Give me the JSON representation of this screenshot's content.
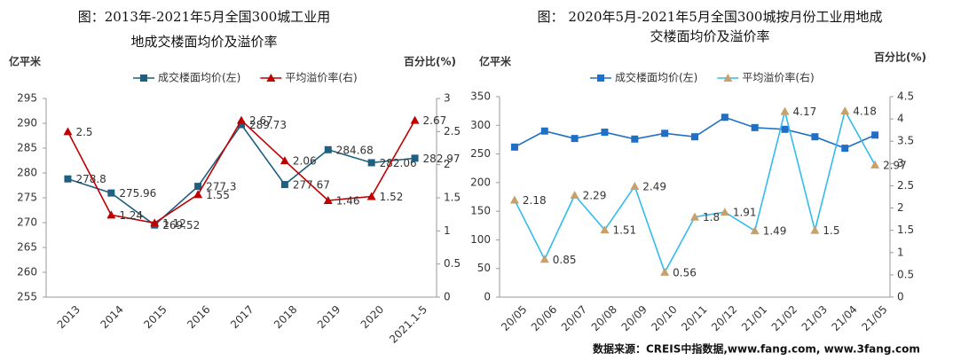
{
  "chart_data": [
    {
      "type": "line",
      "title": [
        "图：2013年-2021年5月全国300城工业用",
        "地成交楼面均价及溢价率"
      ],
      "y_label": "亿平米",
      "y2_label": "百分比(%)",
      "categories": [
        "2013",
        "2014",
        "2015",
        "2016",
        "2017",
        "2018",
        "2019",
        "2020",
        "2021.1-5"
      ],
      "ylim": [
        255,
        295
      ],
      "yticks": [
        255,
        260,
        265,
        270,
        275,
        280,
        285,
        290,
        295
      ],
      "y2lim": [
        0,
        3
      ],
      "y2ticks": [
        0,
        0.5,
        1,
        1.5,
        2,
        2.5,
        3
      ],
      "grid": false,
      "series": [
        {
          "name": "成交楼面均价(左)",
          "color": "#1f5f7f",
          "marker": "square",
          "marker_color": "#1f5f7f",
          "data_labels": true,
          "values": [
            278.8,
            275.96,
            269.52,
            277.3,
            289.73,
            277.67,
            284.68,
            282.06,
            282.97
          ]
        },
        {
          "name": "平均溢价率(右)",
          "color": "#c00000",
          "marker": "triangle",
          "marker_color": "#c00000",
          "data_labels": true,
          "axis": "y2",
          "values": [
            2.5,
            1.24,
            1.12,
            1.55,
            2.67,
            2.06,
            1.46,
            1.52,
            2.67
          ]
        }
      ]
    },
    {
      "type": "line",
      "title": [
        "图：   2020年5月-2021年5月全国300城按月份工业用地成",
        "交楼面均价及溢价率"
      ],
      "y_label": "亿平米",
      "y2_label": "百分比(%)",
      "categories": [
        "20/05",
        "20/06",
        "20/07",
        "20/08",
        "20/09",
        "20/10",
        "20/11",
        "20/12",
        "21/01",
        "21/02",
        "21/03",
        "21/04",
        "21/05"
      ],
      "ylim": [
        0,
        350
      ],
      "yticks": [
        0,
        50,
        100,
        150,
        200,
        250,
        300,
        350
      ],
      "y2lim": [
        0,
        4.5
      ],
      "y2ticks": [
        0,
        0.5,
        1,
        1.5,
        2,
        2.5,
        3,
        3.5,
        4,
        4.5
      ],
      "grid": false,
      "series": [
        {
          "name": "成交楼面均价(左)",
          "color": "#1f6fc5",
          "marker": "square",
          "marker_color": "#1f6fc5",
          "data_labels": false,
          "values": [
            262,
            290,
            277,
            288,
            276,
            286,
            280,
            314,
            296,
            293,
            280,
            260,
            283
          ]
        },
        {
          "name": "平均溢价率(右)",
          "color": "#33bbee",
          "marker": "triangle",
          "marker_color": "#c8a06a",
          "data_labels": true,
          "axis": "y2",
          "values": [
            2.18,
            0.85,
            2.29,
            1.51,
            2.49,
            0.56,
            1.8,
            1.91,
            1.49,
            4.17,
            1.5,
            4.18,
            2.97
          ]
        }
      ]
    }
  ],
  "source": "数据来源：CREIS中指数据,www.fang.com, www.3fang.com"
}
